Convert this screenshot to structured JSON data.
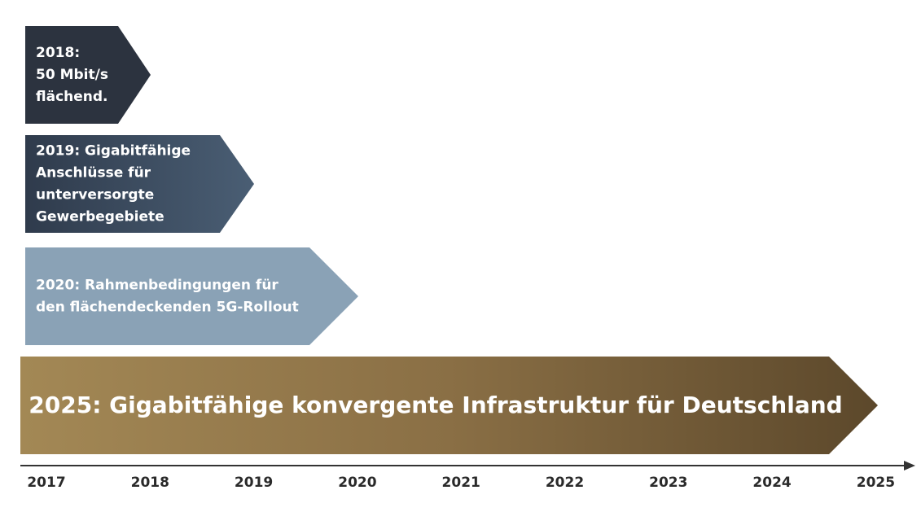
{
  "milestones": [
    {
      "lines": [
        "2018:",
        "50 Mbit/s",
        "flächend."
      ]
    },
    {
      "lines": [
        "2019: Gigabitfähige",
        "Anschlüsse für",
        "unterversorgte",
        "Gewerbegebiete"
      ]
    },
    {
      "lines": [
        "2020: Rahmenbedingungen für",
        "den flächendeckenden 5G-Rollout"
      ]
    }
  ],
  "goal": {
    "text": "2025: Gigabitfähige konvergente Infrastruktur für Deutschland"
  },
  "timeline": {
    "years": [
      "2017",
      "2018",
      "2019",
      "2020",
      "2021",
      "2022",
      "2023",
      "2024",
      "2025"
    ]
  }
}
